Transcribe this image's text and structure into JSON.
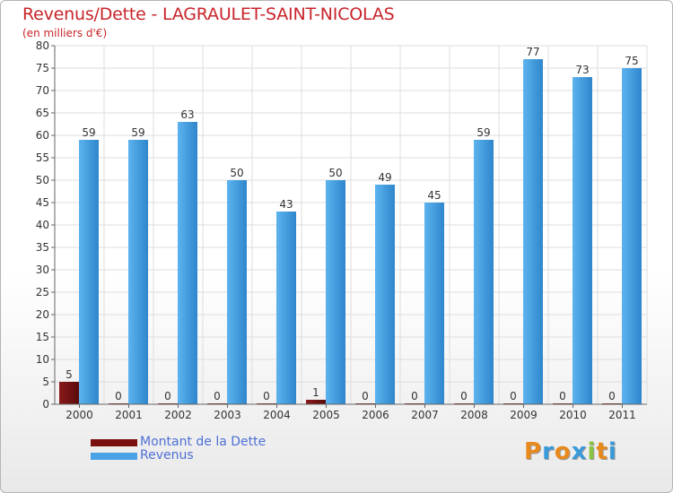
{
  "chart_data": {
    "type": "bar",
    "title": "Revenus/Dette - LAGRAULET-SAINT-NICOLAS",
    "subtitle": "(en milliers d'€)",
    "categories": [
      "2000",
      "2001",
      "2002",
      "2003",
      "2004",
      "2005",
      "2006",
      "2007",
      "2008",
      "2009",
      "2010",
      "2011"
    ],
    "series": [
      {
        "name": "Montant de la Dette",
        "color": "#7a1010",
        "values": [
          5,
          0,
          0,
          0,
          0,
          1,
          0,
          0,
          0,
          0,
          0,
          0
        ]
      },
      {
        "name": "Revenus",
        "color": "#4aa3e6",
        "values": [
          59,
          59,
          63,
          50,
          43,
          50,
          49,
          45,
          59,
          77,
          73,
          75
        ]
      }
    ],
    "ylim": [
      0,
      80
    ],
    "yticks": [
      0,
      5,
      10,
      15,
      20,
      25,
      30,
      35,
      40,
      45,
      50,
      55,
      60,
      65,
      70,
      75,
      80
    ],
    "grid": true,
    "legend_position": "bottom-left"
  },
  "logo": {
    "letters": [
      "P",
      "r",
      "o",
      "x",
      "i",
      "t",
      "i"
    ],
    "colors": [
      "#e8891c",
      "#3a9ad9",
      "#e8891c",
      "#3a9ad9",
      "#8bc43f",
      "#e8891c",
      "#3a9ad9"
    ]
  }
}
